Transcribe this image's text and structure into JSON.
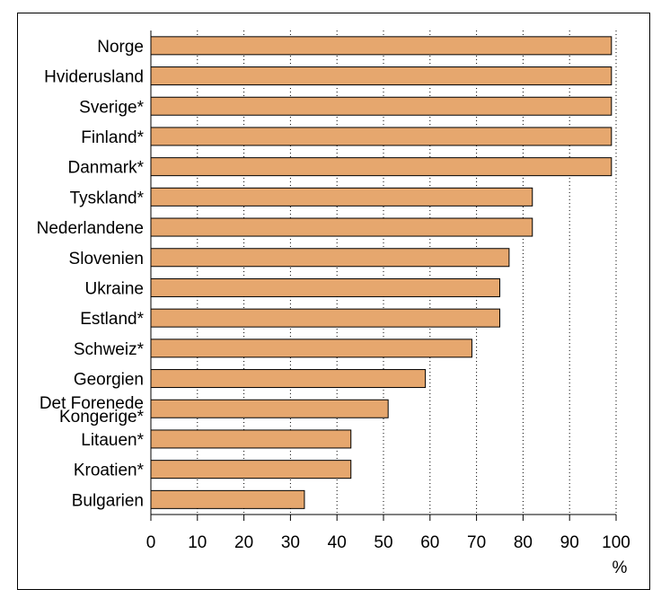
{
  "chart_data": {
    "type": "bar",
    "orientation": "horizontal",
    "categories": [
      "Norge",
      "Hviderusland",
      "Sverige*",
      "Finland*",
      "Danmark*",
      "Tyskland*",
      "Nederlandene",
      "Slovenien",
      "Ukraine",
      "Estland*",
      "Schweiz*",
      "Georgien",
      "Det Forenede Kongerige*",
      "Litauen*",
      "Kroatien*",
      "Bulgarien"
    ],
    "category_lines": [
      [
        "Norge"
      ],
      [
        "Hviderusland"
      ],
      [
        "Sverige*"
      ],
      [
        "Finland*"
      ],
      [
        "Danmark*"
      ],
      [
        "Tyskland*"
      ],
      [
        "Nederlandene"
      ],
      [
        "Slovenien"
      ],
      [
        "Ukraine"
      ],
      [
        "Estland*"
      ],
      [
        "Schweiz*"
      ],
      [
        "Georgien"
      ],
      [
        "Det Forenede",
        "Kongerige*"
      ],
      [
        "Litauen*"
      ],
      [
        "Kroatien*"
      ],
      [
        "Bulgarien"
      ]
    ],
    "values": [
      99,
      99,
      99,
      99,
      99,
      82,
      82,
      77,
      75,
      75,
      69,
      59,
      51,
      43,
      43,
      33
    ],
    "xlim": [
      0,
      100
    ],
    "xticks": [
      0,
      10,
      20,
      30,
      40,
      50,
      60,
      70,
      80,
      90,
      100
    ],
    "xlabel": "%",
    "title": "",
    "grid": "vertical dotted",
    "bar_color": "#E6A76E",
    "bar_edge_color": "#000000"
  }
}
